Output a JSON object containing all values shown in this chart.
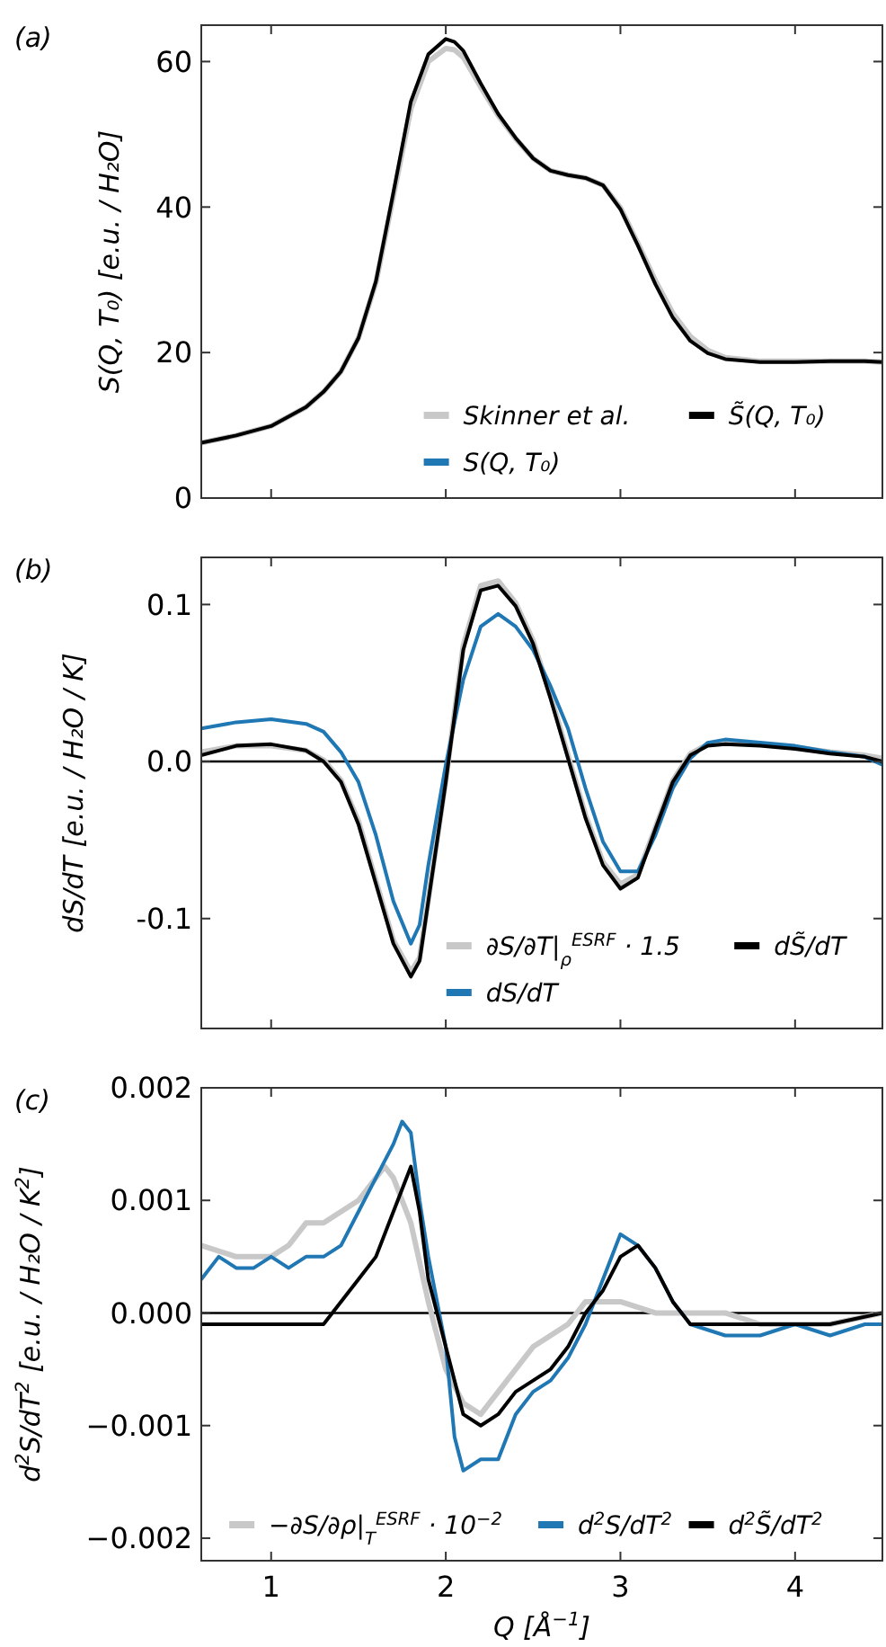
{
  "chart_data": [
    {
      "type": "line",
      "title": "(a)",
      "ylabel": "S(Q, T₀)  [e.u. / H₂O]",
      "xlim": [
        0.6,
        4.5
      ],
      "ylim": [
        0,
        65
      ],
      "xticks": [
        1,
        2,
        3,
        4
      ],
      "yticks": [
        0,
        20,
        40,
        60
      ],
      "tick_labels": "y",
      "legend": "bottom right",
      "series": [
        {
          "name": "Skinner et al.",
          "color": "#c8c8c8",
          "x": [
            0.6,
            0.8,
            1.0,
            1.2,
            1.3,
            1.4,
            1.5,
            1.6,
            1.7,
            1.8,
            1.9,
            2.0,
            2.05,
            2.1,
            2.2,
            2.3,
            2.4,
            2.5,
            2.6,
            2.7,
            2.8,
            2.9,
            3.0,
            3.1,
            3.2,
            3.3,
            3.4,
            3.5,
            3.6,
            3.8,
            4.0,
            4.2,
            4.4,
            4.5
          ],
          "values": [
            7.6,
            8.6,
            9.9,
            12.5,
            14.6,
            17.4,
            22,
            29.6,
            41.5,
            53.5,
            60,
            61.8,
            61.6,
            60.6,
            56.5,
            52.6,
            49.4,
            46.7,
            45,
            44.4,
            44,
            43,
            39.9,
            35,
            29.9,
            25.4,
            22.2,
            20.3,
            19.3,
            18.8,
            18.8,
            18.8,
            18.8,
            18.7
          ]
        },
        {
          "name": "S(Q, T₀)",
          "color": "#1f77b4"
        },
        {
          "name": "S̃(Q, T₀)",
          "color": "#000000",
          "x": [
            0.6,
            0.8,
            1.0,
            1.2,
            1.3,
            1.4,
            1.5,
            1.6,
            1.7,
            1.8,
            1.9,
            2.0,
            2.05,
            2.1,
            2.2,
            2.3,
            2.4,
            2.5,
            2.6,
            2.7,
            2.8,
            2.9,
            3.0,
            3.1,
            3.2,
            3.3,
            3.4,
            3.5,
            3.6,
            3.8,
            4.0,
            4.2,
            4.4,
            4.5
          ],
          "values": [
            7.6,
            8.6,
            9.9,
            12.5,
            14.6,
            17.4,
            22,
            29.8,
            42,
            54.5,
            61,
            63.1,
            62.7,
            61.5,
            57,
            52.8,
            49.5,
            46.7,
            45,
            44.4,
            44,
            43,
            39.7,
            34.7,
            29.4,
            24.8,
            21.6,
            19.9,
            19.1,
            18.7,
            18.7,
            18.8,
            18.8,
            18.7
          ]
        }
      ]
    },
    {
      "type": "line",
      "title": "(b)",
      "ylabel": "dS/dT  [e.u. / H₂O / K]",
      "xlim": [
        0.6,
        4.5
      ],
      "ylim": [
        -0.17,
        0.13
      ],
      "xticks": [
        1,
        2,
        3,
        4
      ],
      "yticks": [
        -0.1,
        {
          "value": 0,
          "label": "0.0"
        },
        0.1
      ],
      "tick_labels": "y",
      "legend": "bottom right",
      "ref_lines": [
        {
          "axis": "y",
          "value": 0,
          "color": "#000000"
        }
      ],
      "series": [
        {
          "name": "∂S/∂T|$_{ρ}$$^{ESRF}$ · 1.5",
          "color": "#c8c8c8",
          "x": [
            0.6,
            0.8,
            1.0,
            1.2,
            1.3,
            1.4,
            1.5,
            1.6,
            1.7,
            1.8,
            1.85,
            1.9,
            2.0,
            2.1,
            2.2,
            2.3,
            2.4,
            2.5,
            2.6,
            2.7,
            2.8,
            2.9,
            3.0,
            3.1,
            3.2,
            3.3,
            3.4,
            3.5,
            3.6,
            3.8,
            4.0,
            4.2,
            4.4,
            4.5
          ],
          "values": [
            0.006,
            0.01,
            0.01,
            0.007,
            0.001,
            -0.012,
            -0.038,
            -0.076,
            -0.114,
            -0.134,
            -0.125,
            -0.088,
            -0.012,
            0.074,
            0.112,
            0.115,
            0.101,
            0.077,
            0.042,
            0.004,
            -0.034,
            -0.064,
            -0.078,
            -0.072,
            -0.042,
            -0.012,
            0.005,
            0.011,
            0.012,
            0.011,
            0.009,
            0.006,
            0.004,
            0.002
          ]
        },
        {
          "name": "dS/dT",
          "color": "#1f77b4",
          "x": [
            0.6,
            0.8,
            1.0,
            1.2,
            1.3,
            1.4,
            1.5,
            1.6,
            1.7,
            1.8,
            1.85,
            1.9,
            2.0,
            2.1,
            2.2,
            2.3,
            2.4,
            2.5,
            2.6,
            2.7,
            2.8,
            2.9,
            3.0,
            3.1,
            3.2,
            3.3,
            3.4,
            3.5,
            3.6,
            3.8,
            4.0,
            4.2,
            4.4,
            4.5
          ],
          "values": [
            0.021,
            0.025,
            0.027,
            0.024,
            0.019,
            0.006,
            -0.013,
            -0.047,
            -0.089,
            -0.116,
            -0.104,
            -0.066,
            -0.002,
            0.052,
            0.086,
            0.094,
            0.086,
            0.071,
            0.048,
            0.021,
            -0.017,
            -0.051,
            -0.07,
            -0.07,
            -0.047,
            -0.017,
            0.002,
            0.012,
            0.014,
            0.012,
            0.01,
            0.006,
            0.003,
            -0.002
          ]
        },
        {
          "name": "dS̃/dT",
          "color": "#000000",
          "x": [
            0.6,
            0.8,
            1.0,
            1.2,
            1.3,
            1.4,
            1.5,
            1.6,
            1.7,
            1.8,
            1.85,
            1.9,
            2.0,
            2.1,
            2.2,
            2.3,
            2.4,
            2.5,
            2.6,
            2.7,
            2.8,
            2.9,
            3.0,
            3.1,
            3.2,
            3.3,
            3.4,
            3.5,
            3.6,
            3.8,
            4.0,
            4.2,
            4.4,
            4.5
          ],
          "values": [
            0.004,
            0.01,
            0.011,
            0.007,
            0.0,
            -0.013,
            -0.04,
            -0.078,
            -0.116,
            -0.137,
            -0.127,
            -0.089,
            -0.013,
            0.071,
            0.109,
            0.112,
            0.099,
            0.075,
            0.04,
            0.002,
            -0.036,
            -0.066,
            -0.081,
            -0.074,
            -0.043,
            -0.013,
            0.004,
            0.01,
            0.011,
            0.01,
            0.008,
            0.005,
            0.003,
            0.0
          ]
        }
      ]
    },
    {
      "type": "line",
      "title": "(c)",
      "xlabel": "Q  [Å$^{−1}$]",
      "ylabel": "d$^{2}$S/dT$^{2}$  [e.u. / H₂O / K$^{2}$]",
      "xlim": [
        0.6,
        4.5
      ],
      "ylim": [
        -0.0022,
        0.002
      ],
      "xticks": [
        1,
        2,
        3,
        4
      ],
      "yticks": [
        {
          "value": -0.002,
          "label": "−0.002"
        },
        {
          "value": -0.001,
          "label": "−0.001"
        },
        {
          "value": 0,
          "label": "0.000"
        },
        {
          "value": 0.001,
          "label": "0.001"
        },
        {
          "value": 0.002,
          "label": "0.002"
        }
      ],
      "legend": "bottom",
      "ref_lines": [
        {
          "axis": "y",
          "value": 0,
          "color": "#000000"
        }
      ],
      "series": [
        {
          "name": "−∂S/∂ρ|$_{T}$$^{ESRF}$ · 10$^{−2}$",
          "color": "#c8c8c8",
          "x": [
            0.6,
            0.8,
            0.9,
            1.0,
            1.1,
            1.2,
            1.3,
            1.4,
            1.5,
            1.6,
            1.65,
            1.7,
            1.8,
            1.9,
            2.0,
            2.1,
            2.2,
            2.3,
            2.4,
            2.5,
            2.6,
            2.7,
            2.8,
            2.9,
            3.0,
            3.2,
            3.4,
            3.6,
            3.8,
            4.0,
            4.2,
            4.5
          ],
          "values": [
            0.0006,
            0.0005,
            0.0005,
            0.0005,
            0.0006,
            0.0008,
            0.0008,
            0.0009,
            0.001,
            0.0012,
            0.0013,
            0.0012,
            0.0008,
            0.0001,
            -0.0005,
            -0.0008,
            -0.0009,
            -0.0007,
            -0.0005,
            -0.0003,
            -0.0002,
            -0.0001,
            0.0001,
            0.0001,
            0.0001,
            0,
            0,
            0,
            -0.0001,
            -0.0001,
            -0.0001,
            0
          ]
        },
        {
          "name": "d$^{2}$S/dT$^{2}$",
          "color": "#1f77b4",
          "x": [
            0.6,
            0.7,
            0.8,
            0.9,
            1.0,
            1.1,
            1.2,
            1.3,
            1.4,
            1.5,
            1.6,
            1.7,
            1.75,
            1.8,
            1.85,
            1.9,
            2.0,
            2.05,
            2.1,
            2.2,
            2.3,
            2.4,
            2.5,
            2.6,
            2.7,
            2.8,
            2.9,
            3.0,
            3.1,
            3.2,
            3.3,
            3.4,
            3.6,
            3.8,
            4.0,
            4.2,
            4.4,
            4.5
          ],
          "values": [
            0.0003,
            0.0005,
            0.0004,
            0.0004,
            0.0005,
            0.0004,
            0.0005,
            0.0005,
            0.0006,
            0.0009,
            0.0012,
            0.0015,
            0.0017,
            0.0016,
            0.001,
            0.0005,
            -0.0003,
            -0.0011,
            -0.0014,
            -0.0013,
            -0.0013,
            -0.0009,
            -0.0007,
            -0.0006,
            -0.0004,
            -0.0001,
            0.0003,
            0.0007,
            0.0006,
            0.0004,
            0.0001,
            -0.0001,
            -0.0002,
            -0.0002,
            -0.0001,
            -0.0002,
            -0.0001,
            -0.0001
          ]
        },
        {
          "name": "d$^{2}$S̃/dT$^{2}$",
          "color": "#000000",
          "x": [
            0.6,
            0.8,
            1.0,
            1.2,
            1.3,
            1.4,
            1.5,
            1.6,
            1.7,
            1.8,
            1.85,
            1.9,
            2.0,
            2.1,
            2.2,
            2.3,
            2.4,
            2.5,
            2.6,
            2.7,
            2.8,
            2.9,
            3.0,
            3.1,
            3.2,
            3.3,
            3.4,
            3.6,
            3.8,
            4.0,
            4.2,
            4.5
          ],
          "values": [
            -0.0001,
            -0.0001,
            -0.0001,
            -0.0001,
            -0.0001,
            0.0001,
            0.0003,
            0.0005,
            0.0009,
            0.0013,
            0.0009,
            0.0003,
            -0.0003,
            -0.0009,
            -0.001,
            -0.0009,
            -0.0007,
            -0.0006,
            -0.0005,
            -0.0003,
            0,
            0.0002,
            0.0005,
            0.0006,
            0.0004,
            0.0001,
            -0.0001,
            -0.0001,
            -0.0001,
            -0.0001,
            -0.0001,
            0
          ]
        }
      ]
    }
  ]
}
